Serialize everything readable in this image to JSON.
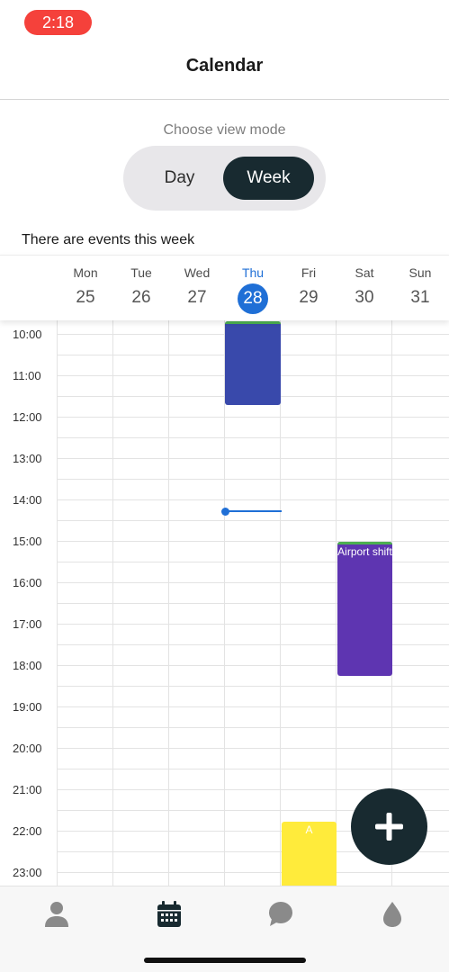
{
  "status_bar": {
    "time": "2:18"
  },
  "header": {
    "title": "Calendar"
  },
  "view_mode": {
    "label": "Choose view mode",
    "options": [
      "Day",
      "Week"
    ],
    "selected": "Week"
  },
  "week_note": "There are events this week",
  "days": [
    {
      "name": "Mon",
      "date": "25",
      "today": false
    },
    {
      "name": "Tue",
      "date": "26",
      "today": false
    },
    {
      "name": "Wed",
      "date": "27",
      "today": false
    },
    {
      "name": "Thu",
      "date": "28",
      "today": true
    },
    {
      "name": "Fri",
      "date": "29",
      "today": false
    },
    {
      "name": "Sat",
      "date": "30",
      "today": false
    },
    {
      "name": "Sun",
      "date": "31",
      "today": false
    }
  ],
  "hours": [
    "10:00",
    "11:00",
    "12:00",
    "13:00",
    "14:00",
    "15:00",
    "16:00",
    "17:00",
    "18:00",
    "19:00",
    "20:00",
    "21:00",
    "22:00",
    "23:00"
  ],
  "events": [
    {
      "day": "Thu",
      "title": "",
      "color": "#3949ab"
    },
    {
      "day": "Sat",
      "title": "Airport shift",
      "color": "#5e35b1"
    },
    {
      "day": "Fri",
      "title": "A",
      "color": "#ffeb3b"
    }
  ],
  "now_indicator": {
    "day": "Thu",
    "color": "#1f6fd6"
  },
  "fab": {
    "icon": "plus-icon"
  },
  "tab_bar": {
    "items": [
      {
        "icon": "person-icon",
        "active": false
      },
      {
        "icon": "calendar-icon",
        "active": true
      },
      {
        "icon": "chat-bubble-icon",
        "active": false
      },
      {
        "icon": "drop-icon",
        "active": false
      }
    ]
  },
  "colors": {
    "accent": "#1f6fd6",
    "dark": "#182a30",
    "status_pill": "#f5413b"
  }
}
